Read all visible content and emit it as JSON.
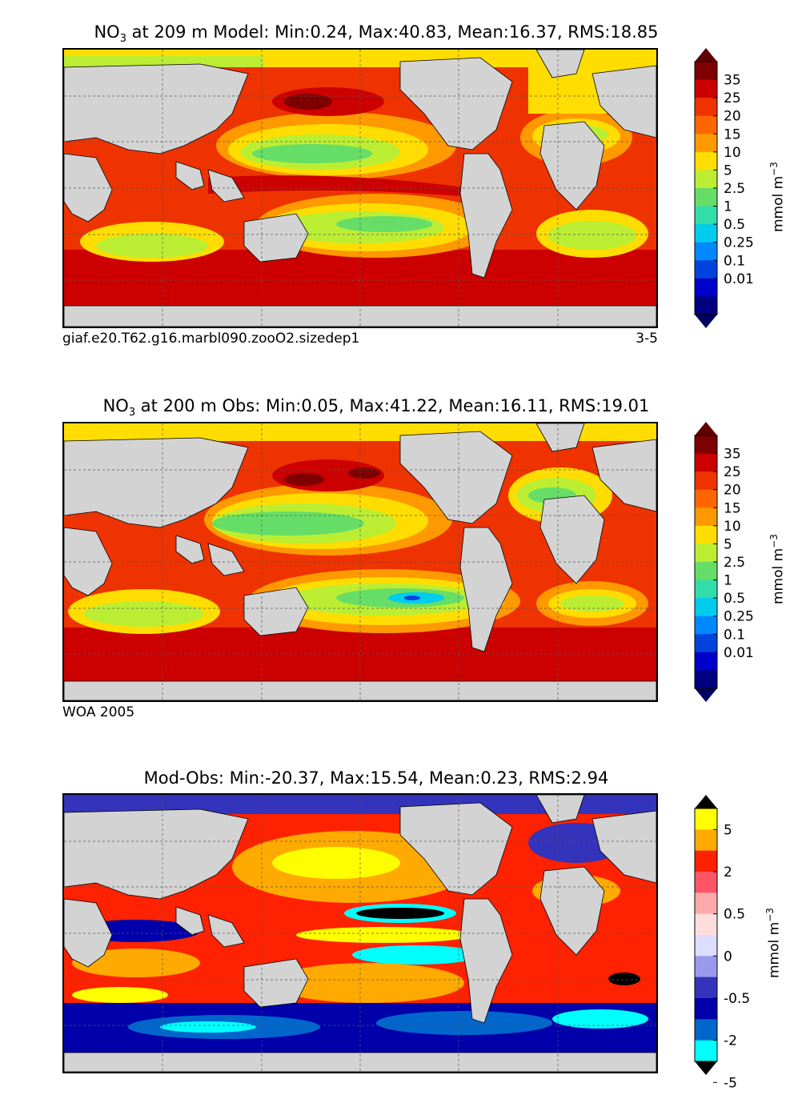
{
  "panels": [
    {
      "title_prefix": "NO",
      "title_sub": "3",
      "title_rest": " at 209 m Model: Min:0.24, Max:40.83, Mean:16.37, RMS:18.85",
      "label_left": "giaf.e20.T62.g16.marbl090.zooO2.sizedep1",
      "label_right": "3-5",
      "unit": "mmol m",
      "unit_exp": "−3",
      "colorbar": {
        "ticks": [
          "35",
          "25",
          "20",
          "15",
          "10",
          "5",
          "2.5",
          "1",
          "0.5",
          "0.25",
          "0.1",
          "0.01"
        ],
        "colors": [
          "#7f0000",
          "#cc0000",
          "#ee3300",
          "#ff6600",
          "#ff9900",
          "#ffdd00",
          "#bbee33",
          "#66dd66",
          "#33ddaa",
          "#00ccee",
          "#0088ff",
          "#0044dd",
          "#0000cc",
          "#000080"
        ],
        "over_color": "#600000",
        "under_color": "#000060"
      }
    },
    {
      "title_prefix": "NO",
      "title_sub": "3",
      "title_rest": " at 200 m Obs: Min:0.05, Max:41.22, Mean:16.11, RMS:19.01",
      "label_left": "WOA 2005",
      "label_right": "",
      "unit": "mmol m",
      "unit_exp": "−3",
      "colorbar": {
        "ticks": [
          "35",
          "25",
          "20",
          "15",
          "10",
          "5",
          "2.5",
          "1",
          "0.5",
          "0.25",
          "0.1",
          "0.01"
        ],
        "colors": [
          "#7f0000",
          "#cc0000",
          "#ee3300",
          "#ff6600",
          "#ff9900",
          "#ffdd00",
          "#bbee33",
          "#66dd66",
          "#33ddaa",
          "#00ccee",
          "#0088ff",
          "#0044dd",
          "#0000cc",
          "#000080"
        ],
        "over_color": "#600000",
        "under_color": "#000060"
      }
    },
    {
      "title_prefix": "",
      "title_sub": "",
      "title_rest": "Mod-Obs: Min:-20.37, Max:15.54, Mean:0.23, RMS:2.94",
      "label_left": "",
      "label_right": "",
      "unit": "mmol m",
      "unit_exp": "−3",
      "colorbar": {
        "ticks": [
          "5",
          "2",
          "0.5",
          "0",
          "-0.5",
          "-2",
          "-5"
        ],
        "colors": [
          "#ffff00",
          "#ffaa00",
          "#ff2200",
          "#ff5566",
          "#ffaaaa",
          "#ffdddd",
          "#ddddff",
          "#9999ee",
          "#3333bb",
          "#0000aa",
          "#0066cc",
          "#00ffff"
        ],
        "over_color": "#000000",
        "under_color": "#000000"
      }
    }
  ],
  "chart_data": [
    {
      "type": "heatmap",
      "title": "NO3 at 209 m Model: Min:0.24, Max:40.83, Mean:16.37, RMS:18.85",
      "variable": "NO3",
      "depth_m": 209,
      "stats": {
        "min": 0.24,
        "max": 40.83,
        "mean": 16.37,
        "rms": 18.85
      },
      "colorbar_levels": [
        0.01,
        0.1,
        0.25,
        0.5,
        1,
        2.5,
        5,
        10,
        15,
        20,
        25,
        35
      ],
      "units": "mmol m^-3",
      "annotation_left": "giaf.e20.T62.g16.marbl090.zooO2.sizedep1",
      "annotation_right": "3-5"
    },
    {
      "type": "heatmap",
      "title": "NO3 at 200 m Obs: Min:0.05, Max:41.22, Mean:16.11, RMS:19.01",
      "variable": "NO3",
      "depth_m": 200,
      "stats": {
        "min": 0.05,
        "max": 41.22,
        "mean": 16.11,
        "rms": 19.01
      },
      "colorbar_levels": [
        0.01,
        0.1,
        0.25,
        0.5,
        1,
        2.5,
        5,
        10,
        15,
        20,
        25,
        35
      ],
      "units": "mmol m^-3",
      "annotation_left": "WOA 2005"
    },
    {
      "type": "heatmap",
      "title": "Mod-Obs: Min:-20.37, Max:15.54, Mean:0.23, RMS:2.94",
      "stats": {
        "min": -20.37,
        "max": 15.54,
        "mean": 0.23,
        "rms": 2.94
      },
      "colorbar_levels": [
        -5,
        -2,
        -0.5,
        0,
        0.5,
        2,
        5
      ],
      "units": "mmol m^-3"
    }
  ]
}
